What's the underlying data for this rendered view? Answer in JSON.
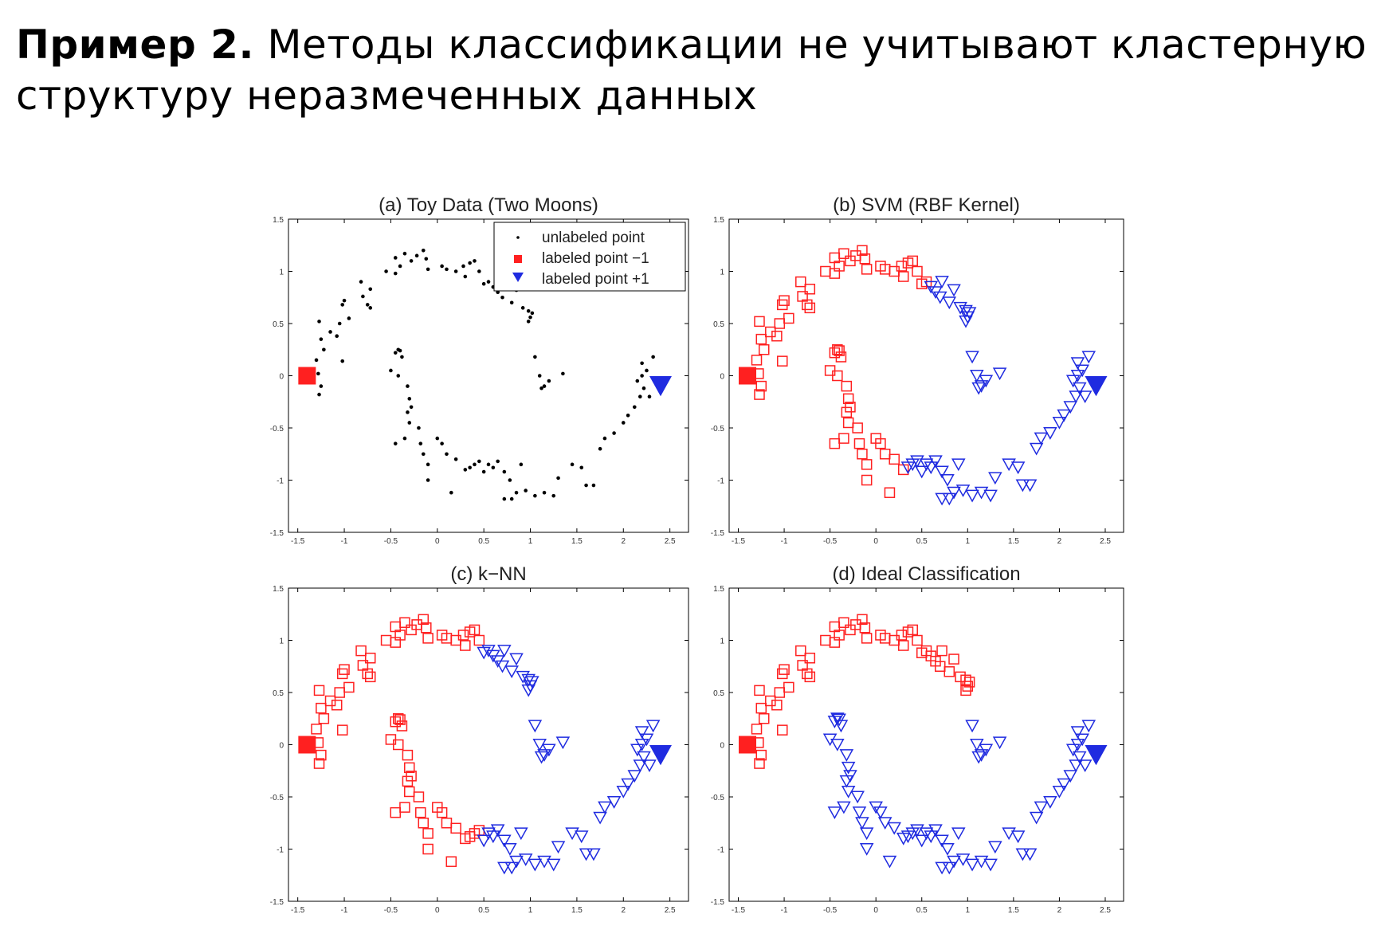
{
  "slide": {
    "title_bold": "Пример 2.",
    "title_rest": " Методы классификации не учитывают кластерную структуру неразмеченных данных"
  },
  "colors": {
    "red": "#ff2020",
    "blue": "#1f2be0",
    "black": "#000000"
  },
  "chart_data": {
    "type": "scatter",
    "xlim": [
      -1.6,
      2.7
    ],
    "ylim": [
      -1.5,
      1.5
    ],
    "xticks": [
      "-1.5",
      "-1",
      "-0.5",
      "0",
      "0.5",
      "1",
      "1.5",
      "2",
      "2.5"
    ],
    "yticks": [
      "1.5",
      "1",
      "0.5",
      "0",
      "-0.5",
      "-1",
      "-1.5"
    ],
    "legend": {
      "placement": "top-right",
      "entries": [
        "unlabeled point",
        "labeled point  −1",
        "labeled point +1"
      ]
    },
    "labeled": {
      "neg": [
        -1.4,
        0.0
      ],
      "pos": [
        2.4,
        -0.1
      ]
    },
    "panels": [
      {
        "id": "a",
        "title": "(a) Toy Data (Two Moons)",
        "mode": "unlabeled"
      },
      {
        "id": "b",
        "title": "(b) SVM  (RBF Kernel)",
        "mode": "svm"
      },
      {
        "id": "c",
        "title": "(c) k−NN",
        "mode": "knn"
      },
      {
        "id": "d",
        "title": "(d) Ideal Classification",
        "mode": "ideal"
      }
    ],
    "upper_moon": [
      [
        -1.28,
        0.02
      ],
      [
        -1.25,
        -0.1
      ],
      [
        -1.27,
        -0.18
      ],
      [
        -1.3,
        0.15
      ],
      [
        -1.25,
        0.35
      ],
      [
        -1.22,
        0.25
      ],
      [
        -1.27,
        0.52
      ],
      [
        -1.15,
        0.42
      ],
      [
        -1.08,
        0.38
      ],
      [
        -1.02,
        0.14
      ],
      [
        -1.05,
        0.5
      ],
      [
        -1.0,
        0.72
      ],
      [
        -1.02,
        0.68
      ],
      [
        -0.95,
        0.55
      ],
      [
        -0.82,
        0.9
      ],
      [
        -0.8,
        0.76
      ],
      [
        -0.75,
        0.68
      ],
      [
        -0.72,
        0.65
      ],
      [
        -0.72,
        0.83
      ],
      [
        -0.55,
        1.0
      ],
      [
        -0.45,
        1.13
      ],
      [
        -0.45,
        0.98
      ],
      [
        -0.4,
        1.05
      ],
      [
        -0.35,
        1.17
      ],
      [
        -0.28,
        1.1
      ],
      [
        -0.22,
        1.15
      ],
      [
        -0.15,
        1.2
      ],
      [
        -0.12,
        1.12
      ],
      [
        -0.1,
        1.02
      ],
      [
        0.05,
        1.05
      ],
      [
        0.1,
        1.02
      ],
      [
        0.2,
        1.0
      ],
      [
        0.28,
        1.05
      ],
      [
        0.35,
        1.08
      ],
      [
        0.4,
        1.1
      ],
      [
        0.3,
        0.95
      ],
      [
        0.45,
        1.0
      ],
      [
        0.5,
        0.88
      ],
      [
        0.55,
        0.9
      ],
      [
        0.6,
        0.85
      ],
      [
        0.65,
        0.8
      ],
      [
        0.7,
        0.75
      ],
      [
        0.72,
        0.9
      ],
      [
        0.8,
        0.7
      ],
      [
        0.85,
        0.82
      ],
      [
        0.92,
        0.65
      ],
      [
        0.98,
        0.62
      ],
      [
        1.0,
        0.56
      ],
      [
        1.02,
        0.6
      ],
      [
        0.98,
        0.52
      ]
    ],
    "inner_blob": [
      [
        1.05,
        0.18
      ],
      [
        1.1,
        0.0
      ],
      [
        1.15,
        -0.1
      ],
      [
        1.2,
        -0.05
      ],
      [
        1.35,
        0.02
      ],
      [
        1.12,
        -0.12
      ]
    ],
    "lower_moon": [
      [
        -0.45,
        0.22
      ],
      [
        -0.4,
        0.24
      ],
      [
        -0.38,
        0.18
      ],
      [
        -0.42,
        0.25
      ],
      [
        -0.5,
        0.05
      ],
      [
        -0.42,
        0.0
      ],
      [
        -0.32,
        -0.1
      ],
      [
        -0.3,
        -0.22
      ],
      [
        -0.28,
        -0.3
      ],
      [
        -0.32,
        -0.35
      ],
      [
        -0.3,
        -0.45
      ],
      [
        -0.45,
        -0.65
      ],
      [
        -0.35,
        -0.6
      ],
      [
        -0.2,
        -0.5
      ],
      [
        -0.18,
        -0.65
      ],
      [
        -0.15,
        -0.75
      ],
      [
        -0.1,
        -0.85
      ],
      [
        0.0,
        -0.6
      ],
      [
        0.05,
        -0.65
      ],
      [
        0.1,
        -0.75
      ],
      [
        -0.1,
        -1.0
      ],
      [
        0.2,
        -0.8
      ],
      [
        0.15,
        -1.12
      ],
      [
        0.3,
        -0.9
      ],
      [
        0.35,
        -0.88
      ],
      [
        0.4,
        -0.85
      ],
      [
        0.45,
        -0.82
      ],
      [
        0.5,
        -0.92
      ],
      [
        0.55,
        -0.85
      ],
      [
        0.6,
        -0.88
      ],
      [
        0.65,
        -0.82
      ],
      [
        0.72,
        -0.92
      ],
      [
        0.78,
        -1.0
      ],
      [
        0.72,
        -1.18
      ],
      [
        0.8,
        -1.18
      ],
      [
        0.85,
        -1.12
      ],
      [
        0.9,
        -0.85
      ],
      [
        0.95,
        -1.1
      ],
      [
        1.05,
        -1.15
      ],
      [
        1.15,
        -1.12
      ],
      [
        1.25,
        -1.15
      ],
      [
        1.3,
        -0.98
      ],
      [
        1.45,
        -0.85
      ],
      [
        1.55,
        -0.88
      ],
      [
        1.6,
        -1.05
      ],
      [
        1.68,
        -1.05
      ],
      [
        1.75,
        -0.7
      ],
      [
        1.8,
        -0.6
      ],
      [
        1.9,
        -0.55
      ],
      [
        2.0,
        -0.45
      ],
      [
        2.05,
        -0.38
      ],
      [
        2.12,
        -0.3
      ],
      [
        2.18,
        -0.2
      ],
      [
        2.22,
        -0.12
      ],
      [
        2.25,
        0.05
      ],
      [
        2.28,
        -0.2
      ],
      [
        2.32,
        0.18
      ],
      [
        2.2,
        0.12
      ],
      [
        2.15,
        -0.05
      ],
      [
        2.2,
        0.0
      ]
    ]
  }
}
